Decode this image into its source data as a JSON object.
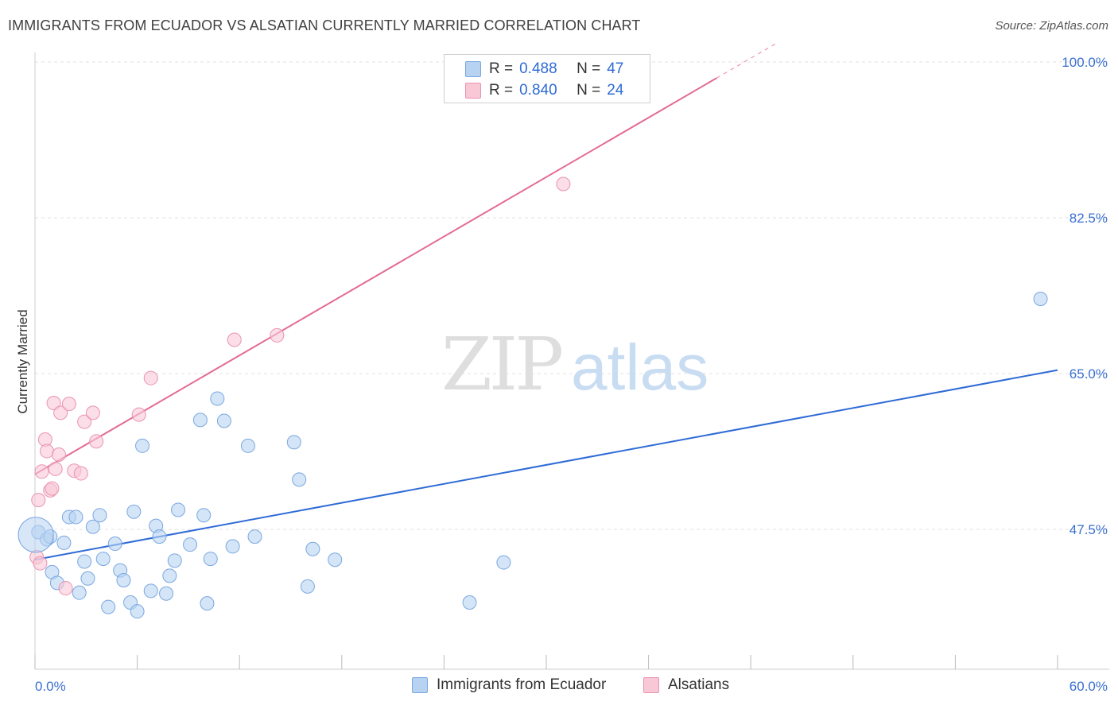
{
  "title": "IMMIGRANTS FROM ECUADOR VS ALSATIAN CURRENTLY MARRIED CORRELATION CHART",
  "source": "Source: ZipAtlas.com",
  "watermark": {
    "zip": "ZIP",
    "atlas": "atlas"
  },
  "colors": {
    "blue_fill": "#b8d3f2",
    "blue_stroke": "#7aa7e0",
    "blue_line": "#2f6bd6",
    "pink_fill": "#f8c8d7",
    "pink_stroke": "#eb93b1",
    "pink_line": "#e36b93",
    "tick_label": "#3a6fd0",
    "grid": "#e1e1e1"
  },
  "legend": {
    "rows": [
      {
        "r_label": "R =",
        "r_value": "0.488",
        "n_label": "N =",
        "n_value": "47",
        "color": "#b8d3f2",
        "border": "#7aa7e0"
      },
      {
        "r_label": "R =",
        "r_value": "0.840",
        "n_label": "N =",
        "n_value": "24",
        "color": "#f8c8d7",
        "border": "#eb93b1"
      }
    ]
  },
  "bottom_legend": [
    {
      "label": "Immigrants from Ecuador",
      "color": "#b8d3f2",
      "border": "#7aa7e0"
    },
    {
      "label": "Alsatians",
      "color": "#f8c8d7",
      "border": "#eb93b1"
    }
  ],
  "chart_data": {
    "type": "scatter",
    "title": "IMMIGRANTS FROM ECUADOR VS ALSATIAN CURRENTLY MARRIED CORRELATION CHART",
    "xlabel": "",
    "ylabel": "Currently Married",
    "xlim": [
      0,
      60
    ],
    "ylim": [
      31.8,
      100
    ],
    "x_tick_labels": [
      "0.0%",
      "60.0%"
    ],
    "y_ticks": [
      47.5,
      65.0,
      82.5,
      100.0
    ],
    "y_tick_labels": [
      "47.5%",
      "65.0%",
      "82.5%",
      "100.0%"
    ],
    "legend_position": "top-center",
    "series": [
      {
        "name": "Immigrants from Ecuador",
        "color": "#b8d3f2",
        "points": [
          [
            0.2,
            47.2
          ],
          [
            0.7,
            46.4
          ],
          [
            0.9,
            46.7
          ],
          [
            1.0,
            42.7
          ],
          [
            1.3,
            41.5
          ],
          [
            1.7,
            46.0
          ],
          [
            2.0,
            48.9
          ],
          [
            2.4,
            48.9
          ],
          [
            2.6,
            40.4
          ],
          [
            2.9,
            43.9
          ],
          [
            3.1,
            42.0
          ],
          [
            3.4,
            47.8
          ],
          [
            3.8,
            49.1
          ],
          [
            4.0,
            44.2
          ],
          [
            4.3,
            38.8
          ],
          [
            4.7,
            45.9
          ],
          [
            5.0,
            42.9
          ],
          [
            5.2,
            41.8
          ],
          [
            5.6,
            39.3
          ],
          [
            5.8,
            49.5
          ],
          [
            6.0,
            38.3
          ],
          [
            6.3,
            56.9
          ],
          [
            6.8,
            40.6
          ],
          [
            7.1,
            47.9
          ],
          [
            7.3,
            46.7
          ],
          [
            7.7,
            40.3
          ],
          [
            7.9,
            42.3
          ],
          [
            8.2,
            44.0
          ],
          [
            8.4,
            49.7
          ],
          [
            9.1,
            45.8
          ],
          [
            9.7,
            59.8
          ],
          [
            9.9,
            49.1
          ],
          [
            10.1,
            39.2
          ],
          [
            10.3,
            44.2
          ],
          [
            10.7,
            62.2
          ],
          [
            11.1,
            59.7
          ],
          [
            11.6,
            45.6
          ],
          [
            12.5,
            56.9
          ],
          [
            12.9,
            46.7
          ],
          [
            15.2,
            57.3
          ],
          [
            15.5,
            53.1
          ],
          [
            16.0,
            41.1
          ],
          [
            16.3,
            45.3
          ],
          [
            17.6,
            44.1
          ],
          [
            25.5,
            39.3
          ],
          [
            27.5,
            43.8
          ],
          [
            59.0,
            73.4
          ]
        ]
      },
      {
        "name": "Alsatians",
        "color": "#f8c8d7",
        "points": [
          [
            0.1,
            44.4
          ],
          [
            0.2,
            50.8
          ],
          [
            0.4,
            54.0
          ],
          [
            0.6,
            57.6
          ],
          [
            0.7,
            56.3
          ],
          [
            0.9,
            51.9
          ],
          [
            1.0,
            52.1
          ],
          [
            1.1,
            61.7
          ],
          [
            1.2,
            54.3
          ],
          [
            1.4,
            55.9
          ],
          [
            1.5,
            60.6
          ],
          [
            1.8,
            40.9
          ],
          [
            2.0,
            61.6
          ],
          [
            2.3,
            54.1
          ],
          [
            2.7,
            53.8
          ],
          [
            2.9,
            59.6
          ],
          [
            3.4,
            60.6
          ],
          [
            3.6,
            57.4
          ],
          [
            6.1,
            60.4
          ],
          [
            6.8,
            64.5
          ],
          [
            11.7,
            68.8
          ],
          [
            14.2,
            69.3
          ],
          [
            31.0,
            86.3
          ],
          [
            0.3,
            43.7
          ]
        ]
      }
    ],
    "trend_lines": [
      {
        "series": "Immigrants from Ecuador",
        "x": [
          0,
          60
        ],
        "y": [
          44.1,
          65.4
        ],
        "style": "solid"
      },
      {
        "series": "Alsatians",
        "x": [
          0,
          40
        ],
        "y": [
          53.7,
          98.2
        ],
        "style": "solid"
      },
      {
        "series": "Alsatians",
        "x": [
          40,
          43.5
        ],
        "y": [
          98.2,
          102.1
        ],
        "style": "dashed"
      }
    ]
  }
}
